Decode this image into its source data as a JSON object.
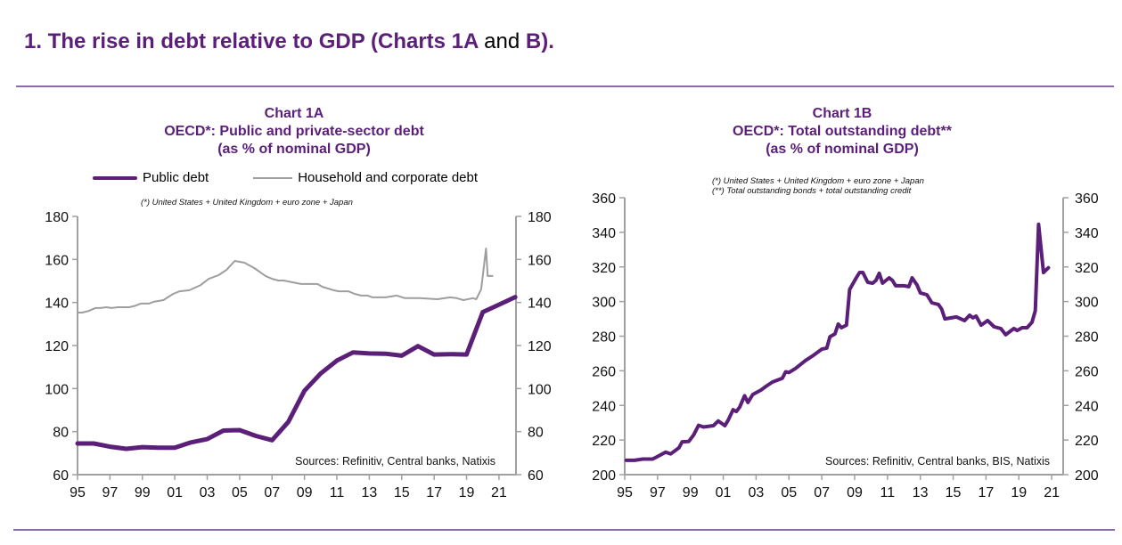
{
  "heading": {
    "part1": "1.  The rise in debt relative to GDP (Charts 1A",
    "part2": "and",
    "part3": "B)."
  },
  "colors": {
    "purple": "#5b1f7a",
    "gray": "#9e9e9e",
    "rule": "#8d6aa9"
  },
  "chart_data": [
    {
      "id": "chart-1a",
      "type": "line",
      "label": "Chart 1A",
      "title": "OECD*: Public and private-sector debt",
      "subtitle": "(as % of nominal GDP)",
      "note": "(*) United States + United Kingdom + euro zone + Japan",
      "source": "Sources: Refinitiv, Central banks, Natixis",
      "legend": [
        "Public debt",
        "Household and corporate debt"
      ],
      "legend_position": "top",
      "xlabel": "",
      "ylabel": "",
      "xlim": [
        1995,
        2022.05
      ],
      "ylim": [
        60,
        180
      ],
      "yticks": [
        60,
        80,
        100,
        120,
        140,
        160,
        180
      ],
      "xtick_years": [
        1995,
        1997,
        1999,
        2001,
        2003,
        2005,
        2007,
        2009,
        2011,
        2013,
        2015,
        2017,
        2019,
        2021
      ],
      "xtick_labels": [
        "95",
        "97",
        "99",
        "01",
        "03",
        "05",
        "07",
        "09",
        "11",
        "13",
        "15",
        "17",
        "19",
        "21"
      ],
      "dual_axis": true,
      "grid": false,
      "series": [
        {
          "name": "Public debt",
          "color": "#5b1f7a",
          "x": [
            1995,
            1996,
            1997,
            1998,
            1999,
            2000,
            2001,
            2002,
            2003,
            2004,
            2005,
            2006,
            2007,
            2008,
            2009,
            2010,
            2011,
            2012,
            2013,
            2014,
            2015,
            2016,
            2017,
            2018,
            2019,
            2020,
            2021,
            2022
          ],
          "y": [
            74.5,
            74.5,
            73,
            72,
            72.8,
            72.5,
            72.5,
            75,
            76.5,
            80.5,
            80.7,
            78,
            76,
            84.5,
            99,
            107,
            113,
            116.8,
            116.3,
            116.2,
            115.3,
            119.7,
            115.8,
            116,
            115.8,
            135.5,
            139,
            142.5
          ]
        },
        {
          "name": "Household and corporate debt",
          "color": "#9e9e9e",
          "x": [
            1995.0,
            1995.3,
            1995.7,
            1996.1,
            1996.4,
            1996.8,
            1997.1,
            1997.5,
            1998.2,
            1998.6,
            1998.9,
            1999.4,
            1999.7,
            2000.3,
            2000.9,
            2001.3,
            2001.9,
            2002.6,
            2003.1,
            2003.7,
            2004.2,
            2004.7,
            2005.3,
            2005.9,
            2006.3,
            2006.6,
            2007.0,
            2007.4,
            2007.7,
            2008.0,
            2008.5,
            2008.8,
            2009.8,
            2010.1,
            2010.8,
            2011.1,
            2011.7,
            2012.1,
            2012.5,
            2012.9,
            2013.2,
            2014.0,
            2014.7,
            2015.2,
            2016.1,
            2017.2,
            2018.0,
            2018.4,
            2018.8,
            2019.4,
            2019.6,
            2019.9,
            2020.2,
            2020.3,
            2020.6
          ],
          "y": [
            135.3,
            135.3,
            136.1,
            137.4,
            137.4,
            137.8,
            137.4,
            137.8,
            137.8,
            138.6,
            139.5,
            139.5,
            140.3,
            141.1,
            144,
            145.2,
            145.7,
            148.1,
            151,
            152.7,
            155.2,
            159.3,
            158.5,
            156,
            153.9,
            152.3,
            151,
            150.2,
            150.2,
            149.8,
            149,
            148.6,
            148.6,
            147.3,
            145.7,
            145.2,
            145.2,
            144,
            143.2,
            143.2,
            142.4,
            142.4,
            143.2,
            142,
            142,
            141.5,
            142.4,
            142,
            141.1,
            142,
            141.5,
            146.1,
            165.1,
            152.3,
            152.3
          ]
        }
      ]
    },
    {
      "id": "chart-1b",
      "type": "line",
      "label": "Chart 1B",
      "title": "OECD*: Total outstanding debt**",
      "subtitle": "(as % of nominal GDP)",
      "notes": [
        "(*) United States + United Kingdom + euro zone + Japan",
        "(**) Total outstanding bonds + total outstanding credit"
      ],
      "source": "Sources: Refinitiv, Central banks, BIS, Natixis",
      "xlabel": "",
      "ylabel": "",
      "xlim": [
        1995,
        2021.7
      ],
      "ylim": [
        200,
        360
      ],
      "yticks": [
        200,
        220,
        240,
        260,
        280,
        300,
        320,
        340,
        360
      ],
      "xtick_years": [
        1995,
        1997,
        1999,
        2001,
        2003,
        2005,
        2007,
        2009,
        2011,
        2013,
        2015,
        2017,
        2019,
        2021
      ],
      "xtick_labels": [
        "95",
        "97",
        "99",
        "01",
        "03",
        "05",
        "07",
        "09",
        "11",
        "13",
        "15",
        "17",
        "19",
        "21"
      ],
      "dual_axis": true,
      "grid": false,
      "series": [
        {
          "name": "Total outstanding debt",
          "color": "#5b1f7a",
          "x": [
            1995.1,
            1995.6,
            1996.1,
            1996.7,
            1997.1,
            1997.5,
            1997.8,
            1998.3,
            1998.5,
            1998.9,
            1999.2,
            1999.5,
            1999.8,
            2000.4,
            2000.7,
            2001.1,
            2001.3,
            2001.6,
            2001.8,
            2002.0,
            2002.3,
            2002.5,
            2002.8,
            2003.3,
            2003.6,
            2004.0,
            2004.6,
            2004.8,
            2005.0,
            2005.4,
            2006.0,
            2006.5,
            2007.0,
            2007.3,
            2007.5,
            2007.8,
            2008.0,
            2008.2,
            2008.5,
            2008.7,
            2009.1,
            2009.3,
            2009.5,
            2009.8,
            2010.1,
            2010.3,
            2010.5,
            2010.7,
            2011.1,
            2011.3,
            2011.5,
            2012.0,
            2012.3,
            2012.5,
            2012.8,
            2013.0,
            2013.4,
            2013.7,
            2014.1,
            2014.3,
            2014.5,
            2015.2,
            2015.7,
            2016.0,
            2016.2,
            2016.4,
            2016.7,
            2017.1,
            2017.5,
            2017.9,
            2018.2,
            2018.7,
            2018.9,
            2019.2,
            2019.5,
            2019.8,
            2020.0,
            2020.2,
            2020.5,
            2020.8
          ],
          "y": [
            208.3,
            208.3,
            209,
            209,
            211,
            213,
            212,
            215.5,
            219,
            219.2,
            223,
            228.5,
            227.5,
            228.3,
            231,
            228.3,
            231.5,
            237.5,
            236.5,
            239,
            245.6,
            241.7,
            246.3,
            248.9,
            251,
            253.5,
            255.7,
            259.4,
            259,
            261.3,
            265.9,
            269,
            272.5,
            273.1,
            279.7,
            281.3,
            287,
            284.9,
            286.4,
            307,
            313.7,
            316.8,
            316.8,
            311.1,
            310.6,
            312.2,
            316.3,
            310.6,
            313.7,
            312.2,
            309.1,
            309.1,
            308.6,
            313.7,
            309.6,
            305,
            303.9,
            299.3,
            298.3,
            295.7,
            290,
            291.1,
            289,
            292.1,
            290.6,
            291.6,
            286.4,
            289,
            285.4,
            284.4,
            280.8,
            284.4,
            283.3,
            284.9,
            284.9,
            288,
            294.7,
            344.6,
            316.8,
            319.5
          ]
        }
      ]
    }
  ]
}
